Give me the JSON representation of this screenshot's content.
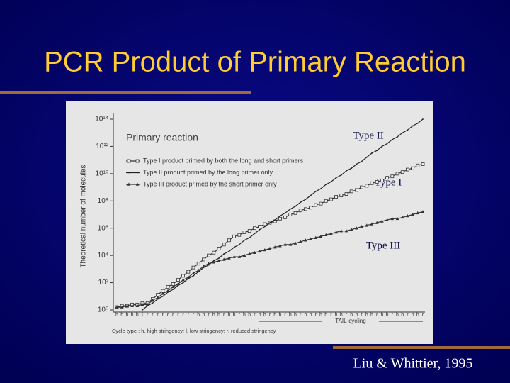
{
  "slide_title": "PCR Product of Primary Reaction",
  "citation": "Liu & Whittier, 1995",
  "annotations": [
    "Type II",
    "Type I",
    "Type III"
  ],
  "chart_data": {
    "type": "line",
    "title": "Primary reaction",
    "y_label": "Theoretical number of molecules",
    "x_label": "TAIL-cycling",
    "note": "Cycle type : h, high stringency; l, low stringency; r, reduced stringency",
    "yscale": "log",
    "ylim": [
      1,
      100000000000000
    ],
    "yticks": [
      {
        "value": 1,
        "label": "10⁰"
      },
      {
        "value": 100,
        "label": "10²"
      },
      {
        "value": 10000,
        "label": "10⁴"
      },
      {
        "value": 1000000,
        "label": "10⁶"
      },
      {
        "value": 100000000,
        "label": "10⁸"
      },
      {
        "value": 10000000000,
        "label": "10¹⁰"
      },
      {
        "value": 1000000000000,
        "label": "10¹²"
      },
      {
        "value": 100000000000000,
        "label": "10¹⁴"
      }
    ],
    "categories": [
      "h",
      "h",
      "h",
      "h",
      "h",
      "l",
      "r",
      "r",
      "r",
      "r",
      "r",
      "r",
      "r",
      "r",
      "r",
      "r",
      "h",
      "h",
      "r",
      "h",
      "h",
      "r",
      "h",
      "h",
      "r",
      "h",
      "h",
      "r",
      "h",
      "h",
      "r",
      "h",
      "h",
      "r",
      "h",
      "h",
      "r",
      "h",
      "h",
      "r",
      "h",
      "h",
      "r",
      "h",
      "h",
      "r",
      "h",
      "h",
      "r",
      "h",
      "h",
      "r",
      "h",
      "h",
      "r",
      "h",
      "h",
      "r",
      "h",
      "h",
      "r"
    ],
    "series": [
      {
        "name": "Type I product primed by both the long and short primers",
        "color": "#333333",
        "marker": "square",
        "values": [
          1.6,
          2,
          2,
          2.5,
          2.5,
          3.2,
          3.2,
          6.3,
          13,
          25,
          50,
          79,
          160,
          320,
          630,
          1300,
          2500,
          5000,
          10000,
          16000,
          32000,
          63000,
          130000,
          250000,
          320000,
          500000,
          630000,
          1000000,
          1300000,
          2000000,
          2500000,
          3200000,
          5000000,
          6300000,
          10000000,
          13000000,
          20000000,
          25000000,
          32000000,
          50000000,
          63000000,
          100000000,
          130000000,
          200000000,
          250000000,
          320000000,
          500000000,
          630000000,
          1000000000,
          1300000000,
          2000000000,
          2500000000,
          3200000000,
          5000000000,
          6300000000,
          10000000000,
          13000000000,
          20000000000,
          25000000000,
          40000000000,
          50000000000
        ]
      },
      {
        "name": "Type II product primed by the long primer only",
        "color": "#222222",
        "marker": "none",
        "values": [
          null,
          null,
          null,
          null,
          null,
          1,
          2,
          3.2,
          6.3,
          10,
          20,
          32,
          63,
          100,
          200,
          320,
          630,
          1300,
          2000,
          4000,
          6300,
          13000,
          20000,
          40000,
          63000,
          130000,
          200000,
          400000,
          790000,
          1300000,
          2500000,
          4000000,
          7900000,
          13000000,
          25000000,
          40000000,
          79000000,
          130000000,
          250000000,
          500000000,
          790000000,
          1600000000,
          2500000000,
          5000000000,
          7900000000,
          16000000000,
          25000000000,
          50000000000,
          79000000000,
          160000000000,
          320000000000,
          500000000000,
          1000000000000,
          1600000000000,
          3200000000000,
          5000000000000,
          10000000000000,
          16000000000000,
          32000000000000,
          50000000000000,
          100000000000000
        ]
      },
      {
        "name": "Type III product primed by the short primer only",
        "color": "#333333",
        "marker": "triangle",
        "values": [
          1.6,
          1.6,
          2,
          2,
          2,
          2.5,
          2.5,
          5,
          7.9,
          16,
          25,
          50,
          79,
          160,
          250,
          500,
          790,
          1600,
          2500,
          3200,
          4000,
          5000,
          6300,
          7900,
          7900,
          10000,
          13000,
          16000,
          20000,
          25000,
          32000,
          40000,
          50000,
          63000,
          63000,
          79000,
          100000,
          130000,
          160000,
          200000,
          250000,
          320000,
          400000,
          500000,
          630000,
          630000,
          790000,
          1000000,
          1300000,
          1600000,
          2000000,
          2500000,
          3200000,
          4000000,
          5000000,
          5000000,
          6300000,
          7900000,
          10000000,
          13000000,
          16000000
        ]
      }
    ]
  }
}
